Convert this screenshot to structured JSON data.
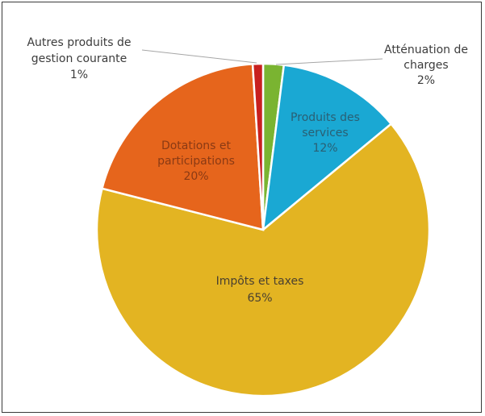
{
  "chart_data": {
    "type": "pie",
    "slices": [
      {
        "name": "Atténuation de charges",
        "value": 2,
        "color": "#7ab431",
        "label_lines": [
          "Atténuation  de",
          "charges",
          "2%"
        ],
        "label_color": "#3c3c3c",
        "label_outside": true
      },
      {
        "name": "Produits des services",
        "value": 12,
        "color": "#1aa8d3",
        "label_lines": [
          "Produits des",
          "services",
          "12%"
        ],
        "label_color": "#2a5f73",
        "label_outside": false
      },
      {
        "name": "Impôts et taxes",
        "value": 65,
        "color": "#e3b422",
        "label_lines": [
          "Impôts et taxes",
          "65%"
        ],
        "label_color": "#4a4030",
        "label_outside": false
      },
      {
        "name": "Dotations et participations",
        "value": 20,
        "color": "#e6651c",
        "label_lines": [
          "Dotations et",
          "participations",
          "20%"
        ],
        "label_color": "#8a3a14",
        "label_outside": false
      },
      {
        "name": "Autres produits de gestion courante",
        "value": 1,
        "color": "#c8201f",
        "label_lines": [
          "Autres produits de",
          "gestion courante",
          "1%"
        ],
        "label_color": "#3c3c3c",
        "label_outside": true
      }
    ],
    "legend": "none"
  }
}
